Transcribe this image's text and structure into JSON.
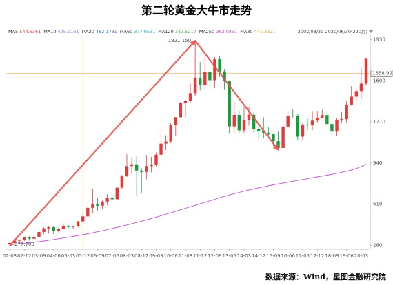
{
  "chart_data": {
    "type": "candlestick",
    "title": "第二轮黄金大牛市走势",
    "range_label": "2002/03/29-2020/06/30(220月)",
    "source": "数据来源：Wind，星图金融研究院",
    "ylim": [
      250,
      1960
    ],
    "yticks": [
      280,
      610,
      940,
      1270,
      1600,
      1930
    ],
    "xlim": [
      0,
      219
    ],
    "xticks": [
      {
        "value": 0,
        "label": "02-03"
      },
      {
        "value": 9,
        "label": "02-12"
      },
      {
        "value": 18,
        "label": "03-09"
      },
      {
        "value": 27,
        "label": "04-06"
      },
      {
        "value": 36,
        "label": "05-03"
      },
      {
        "value": 45,
        "label": "05-12"
      },
      {
        "value": 54,
        "label": "06-09"
      },
      {
        "value": 63,
        "label": "07-06"
      },
      {
        "value": 72,
        "label": "08-03"
      },
      {
        "value": 81,
        "label": "08-12"
      },
      {
        "value": 90,
        "label": "09-09"
      },
      {
        "value": 99,
        "label": "10-06"
      },
      {
        "value": 108,
        "label": "11-03"
      },
      {
        "value": 117,
        "label": "11-12"
      },
      {
        "value": 126,
        "label": "12-09"
      },
      {
        "value": 135,
        "label": "13-06"
      },
      {
        "value": 144,
        "label": "14-03"
      },
      {
        "value": 153,
        "label": "14-12"
      },
      {
        "value": 162,
        "label": "15-09"
      },
      {
        "value": 171,
        "label": "16-06"
      },
      {
        "value": 180,
        "label": "17-03"
      },
      {
        "value": 189,
        "label": "17-12"
      },
      {
        "value": 198,
        "label": "18-09"
      },
      {
        "value": 207,
        "label": "19-06"
      },
      {
        "value": 216,
        "label": "20-03"
      }
    ],
    "up_color": "#e23b3b",
    "down_color": "#1a9b3c",
    "x": [
      0,
      3,
      6,
      9,
      12,
      15,
      18,
      21,
      24,
      27,
      30,
      33,
      36,
      39,
      42,
      45,
      48,
      51,
      54,
      57,
      60,
      63,
      66,
      69,
      72,
      75,
      78,
      81,
      84,
      87,
      90,
      93,
      96,
      99,
      102,
      105,
      108,
      111,
      114,
      117,
      120,
      123,
      126,
      129,
      132,
      135,
      138,
      141,
      144,
      147,
      150,
      153,
      156,
      159,
      162,
      165,
      168,
      171,
      174,
      177,
      180,
      183,
      186,
      189,
      192,
      195,
      198,
      201,
      204,
      207,
      210,
      213,
      216,
      219
    ],
    "open": [
      290,
      300,
      318,
      324,
      347,
      334,
      346,
      388,
      417,
      427,
      395,
      415,
      438,
      428,
      436,
      473,
      513,
      582,
      613,
      599,
      632,
      662,
      650,
      743,
      834,
      916,
      930,
      880,
      869,
      916,
      927,
      1007,
      1096,
      1113,
      1244,
      1307,
      1421,
      1439,
      1500,
      1624,
      1563,
      1668,
      1604,
      1772,
      1675,
      1595,
      1234,
      1326,
      1202,
      1284,
      1327,
      1211,
      1199,
      1183,
      1171,
      1115,
      1061,
      1233,
      1321,
      1315,
      1152,
      1249,
      1242,
      1280,
      1303,
      1325,
      1253,
      1192,
      1282,
      1292,
      1409,
      1472,
      1517,
      1577
    ],
    "high": [
      305,
      330,
      330,
      350,
      352,
      372,
      392,
      425,
      432,
      430,
      420,
      456,
      445,
      440,
      477,
      540,
      590,
      730,
      665,
      640,
      690,
      692,
      745,
      845,
      1011,
      986,
      1000,
      900,
      1005,
      990,
      1024,
      1226,
      1163,
      1265,
      1310,
      1431,
      1447,
      1577,
      1921.15,
      1750,
      1792,
      1675,
      1790,
      1796,
      1695,
      1604,
      1434,
      1360,
      1392,
      1392,
      1345,
      1255,
      1307,
      1232,
      1170,
      1191,
      1282,
      1360,
      1375,
      1337,
      1263,
      1296,
      1358,
      1358,
      1366,
      1365,
      1260,
      1300,
      1347,
      1438,
      1557,
      1535,
      1704,
      1785
    ],
    "low": [
      277.7,
      295,
      300,
      315,
      319,
      320,
      342,
      370,
      375,
      371,
      385,
      405,
      411,
      414,
      425,
      470,
      510,
      542,
      560,
      573,
      602,
      640,
      642,
      732,
      830,
      850,
      681,
      700,
      810,
      865,
      913,
      1005,
      1045,
      1100,
      1157,
      1300,
      1308,
      1420,
      1478,
      1522,
      1526,
      1527,
      1540,
      1630,
      1525,
      1180,
      1180,
      1180,
      1182,
      1240,
      1183,
      1131,
      1142,
      1142,
      1077,
      1046,
      1061,
      1203,
      1301,
      1124,
      1122,
      1204,
      1204,
      1260,
      1307,
      1250,
      1160,
      1160,
      1266,
      1266,
      1400,
      1445,
      1451,
      1560
    ],
    "close": [
      300,
      318,
      324,
      347,
      334,
      346,
      388,
      417,
      427,
      395,
      415,
      438,
      428,
      436,
      473,
      513,
      582,
      613,
      599,
      632,
      662,
      650,
      743,
      834,
      916,
      930,
      880,
      869,
      916,
      927,
      1007,
      1096,
      1113,
      1244,
      1307,
      1421,
      1439,
      1500,
      1624,
      1563,
      1668,
      1604,
      1772,
      1675,
      1595,
      1234,
      1326,
      1202,
      1284,
      1327,
      1211,
      1199,
      1183,
      1171,
      1115,
      1061,
      1233,
      1321,
      1315,
      1152,
      1249,
      1242,
      1280,
      1303,
      1325,
      1253,
      1192,
      1282,
      1292,
      1409,
      1472,
      1517,
      1577,
      1781
    ],
    "ma_legend": [
      {
        "name": "MA5",
        "value": 544.6361,
        "color": "#e23b3b"
      },
      {
        "name": "MA10",
        "value": 495.9161,
        "color": "#7b7bd6"
      },
      {
        "name": "MA20",
        "value": 462.1731,
        "color": "#3a6fd8"
      },
      {
        "name": "MA60",
        "value": 377.9531,
        "color": "#2bb0c8"
      },
      {
        "name": "MA120",
        "value": 342.5217,
        "color": "#4caf50"
      },
      {
        "name": "MA250",
        "value": 362.9831,
        "color": "#c04fd0",
        "values": [
          290,
          292,
          295,
          298,
          302,
          306,
          311,
          316,
          322,
          328,
          334,
          340,
          346,
          352,
          359,
          366,
          374,
          382,
          390,
          398,
          407,
          416,
          425,
          434,
          444,
          454,
          464,
          474,
          485,
          496,
          507,
          518,
          530,
          542,
          554,
          566,
          578,
          590,
          602,
          614,
          626,
          638,
          650,
          662,
          673,
          684,
          695,
          705,
          715,
          724,
          733,
          742,
          750,
          758,
          766,
          773,
          780,
          787,
          794,
          801,
          808,
          815,
          822,
          829,
          836,
          843,
          850,
          858,
          866,
          875,
          885,
          897,
          912,
          930
        ]
      },
      {
        "name": "MA30",
        "value": 441.2321,
        "color": "#e0a040"
      }
    ],
    "annotations": [
      {
        "label": "1921.150",
        "value": 1921.15,
        "x": 114
      },
      {
        "label": "277.700",
        "value": 277.7,
        "x": 0
      }
    ],
    "crosshair": {
      "value": 1658.991,
      "label": "1658.991",
      "x": 45
    }
  }
}
